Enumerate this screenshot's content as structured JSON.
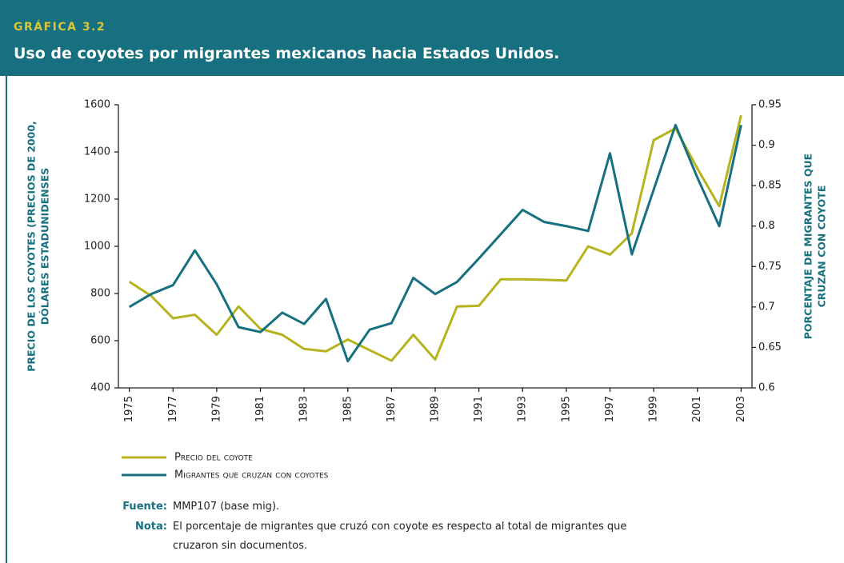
{
  "header": {
    "label": "GRÁFICA 3.2",
    "title": "Uso de coyotes por migrantes mexicanos hacia Estados Unidos."
  },
  "chart_data": {
    "type": "line",
    "y_label": [
      "PRECIO DE LOS COYOTES (PRECIOS DE 2000,",
      "DÓLARES ESTADUNIDENSES"
    ],
    "y2_label": [
      "PORCENTAJE DE MIGRANTES QUE",
      "CRUZAN CON COYOTE"
    ],
    "x": [
      1975,
      1976,
      1977,
      1978,
      1979,
      1980,
      1981,
      1982,
      1983,
      1984,
      1985,
      1986,
      1987,
      1988,
      1989,
      1990,
      1991,
      1992,
      1993,
      1994,
      1995,
      1996,
      1997,
      1998,
      1999,
      2000,
      2001,
      2002,
      2003
    ],
    "xlim": [
      1974.5,
      2003.5
    ],
    "xticks": [
      1975,
      1977,
      1979,
      1981,
      1983,
      1985,
      1987,
      1989,
      1991,
      1993,
      1995,
      1997,
      1999,
      2001,
      2003
    ],
    "ylim": [
      400,
      1600
    ],
    "yticks": [
      400,
      600,
      800,
      1000,
      1200,
      1400,
      1600
    ],
    "y2lim": [
      0.6,
      0.95
    ],
    "y2ticks": [
      0.6,
      0.65,
      0.7,
      0.75,
      0.8,
      0.85,
      0.9,
      0.95
    ],
    "series": [
      {
        "name": "Precio del coyote",
        "color": "#b7b31f",
        "values": [
          850,
          790,
          695,
          710,
          625,
          745,
          650,
          625,
          565,
          555,
          605,
          560,
          515,
          625,
          520,
          745,
          748,
          860,
          860,
          858,
          855,
          1000,
          965,
          1055,
          1450,
          1500,
          1330,
          1170,
          1555
        ]
      },
      {
        "name": "Migrantes que cruzan con coyotes",
        "color": "#17707f",
        "axis": "y2",
        "values": [
          0.7,
          0.716,
          0.727,
          0.77,
          0.728,
          0.675,
          0.669,
          0.693,
          0.679,
          0.71,
          0.633,
          0.672,
          0.68,
          0.736,
          0.716,
          0.731,
          0.76,
          0.79,
          0.82,
          0.805,
          0.8,
          0.794,
          0.89,
          0.765,
          0.845,
          0.925,
          0.86,
          0.8,
          0.925
        ]
      }
    ]
  },
  "notes": {
    "source_label": "Fuente:",
    "source": "MMP107 (base mig).",
    "note_label": "Nota:",
    "note": "El porcentaje de migrantes que cruzó con coyote es respecto al total de migrantes que cruzaron sin documentos."
  }
}
